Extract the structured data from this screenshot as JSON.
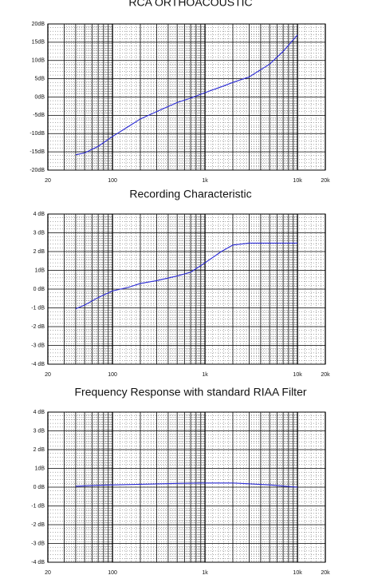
{
  "chart_data": [
    {
      "type": "line",
      "title": "RCA ORTHOACOUSTIC",
      "x": [
        40,
        50,
        70,
        100,
        150,
        200,
        300,
        500,
        700,
        1000,
        1500,
        2000,
        3000,
        5000,
        7000,
        10000
      ],
      "values": [
        -15.8,
        -15.3,
        -13.5,
        -10.8,
        -8,
        -6,
        -4,
        -1.5,
        -0.3,
        1.2,
        2.8,
        4,
        5.5,
        9,
        12.5,
        17
      ],
      "color": "#2b2bd6",
      "log_x": true,
      "grid": true,
      "xlim": [
        20,
        20000
      ],
      "xticks": [
        20,
        100,
        {
          "value": 1000,
          "label": "1k"
        },
        {
          "value": 10000,
          "label": "10k"
        },
        {
          "value": 20000,
          "label": "20k"
        }
      ],
      "ylim": [
        -20,
        20
      ],
      "yticks": [
        {
          "value": 20,
          "label": "20dB"
        },
        {
          "value": 15,
          "label": "15dB"
        },
        {
          "value": 10,
          "label": "10dB"
        },
        {
          "value": 5,
          "label": "5dB"
        },
        {
          "value": 0,
          "label": "0dB"
        },
        {
          "value": -5,
          "label": "-5dB"
        },
        {
          "value": -10,
          "label": "-10dB"
        },
        {
          "value": -15,
          "label": "-15dB"
        },
        {
          "value": -20,
          "label": "-20dB"
        }
      ]
    },
    {
      "type": "line",
      "title": "Recording Characteristic",
      "x": [
        40,
        50,
        70,
        100,
        150,
        200,
        300,
        500,
        700,
        1000,
        1500,
        2000,
        3000,
        5000,
        7000,
        10000
      ],
      "values": [
        -1.05,
        -0.85,
        -0.45,
        -0.1,
        0.1,
        0.3,
        0.45,
        0.7,
        0.9,
        1.4,
        2.0,
        2.35,
        2.45,
        2.45,
        2.45,
        2.45
      ],
      "color": "#2b2bd6",
      "log_x": true,
      "grid": true,
      "xlim": [
        20,
        20000
      ],
      "xticks": [
        20,
        100,
        {
          "value": 1000,
          "label": "1k"
        },
        {
          "value": 10000,
          "label": "10k"
        },
        {
          "value": 20000,
          "label": "20k"
        }
      ],
      "ylim": [
        -4,
        4
      ],
      "yticks": [
        {
          "value": 4,
          "label": "4 dB"
        },
        {
          "value": 3,
          "label": "3 dB"
        },
        {
          "value": 2,
          "label": "2 dB"
        },
        {
          "value": 1,
          "label": "1dB"
        },
        {
          "value": 0,
          "label": "0 dB"
        },
        {
          "value": -1,
          "label": "-1 dB"
        },
        {
          "value": -2,
          "label": "-2 dB"
        },
        {
          "value": -3,
          "label": "-3 dB"
        },
        {
          "value": -4,
          "label": "-4 dB"
        }
      ]
    },
    {
      "type": "line",
      "title": "Frequency Response with standard RIAA Filter",
      "x": [
        40,
        70,
        100,
        200,
        500,
        1000,
        2000,
        3000,
        5000,
        7000,
        10000
      ],
      "values": [
        0.05,
        0.1,
        0.12,
        0.15,
        0.2,
        0.22,
        0.22,
        0.18,
        0.12,
        0.06,
        0
      ],
      "color": "#2b2bd6",
      "log_x": true,
      "grid": true,
      "xlim": [
        20,
        20000
      ],
      "xticks": [
        20,
        100,
        {
          "value": 1000,
          "label": "1k"
        },
        {
          "value": 10000,
          "label": "10k"
        },
        {
          "value": 20000,
          "label": "20k"
        }
      ],
      "ylim": [
        -4,
        4
      ],
      "yticks": [
        {
          "value": 4,
          "label": "4 dB"
        },
        {
          "value": 3,
          "label": "3 dB"
        },
        {
          "value": 2,
          "label": "2 dB"
        },
        {
          "value": 1,
          "label": "1dB"
        },
        {
          "value": 0,
          "label": "0 dB"
        },
        {
          "value": -1,
          "label": "-1 dB"
        },
        {
          "value": -2,
          "label": "-2 dB"
        },
        {
          "value": -3,
          "label": "-3 dB"
        },
        {
          "value": -4,
          "label": "-4 dB"
        }
      ]
    }
  ]
}
